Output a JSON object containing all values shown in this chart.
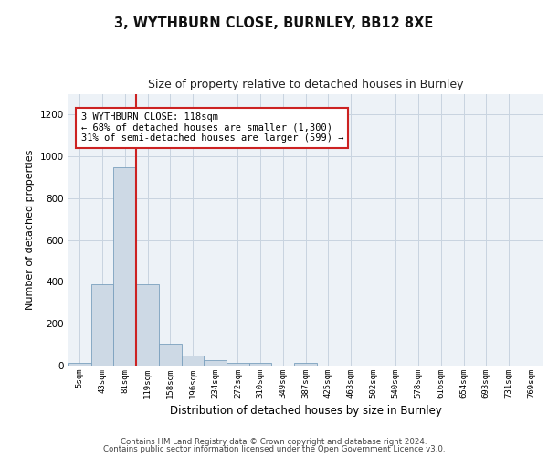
{
  "title1": "3, WYTHBURN CLOSE, BURNLEY, BB12 8XE",
  "title2": "Size of property relative to detached houses in Burnley",
  "xlabel": "Distribution of detached houses by size in Burnley",
  "ylabel": "Number of detached properties",
  "footer1": "Contains HM Land Registry data © Crown copyright and database right 2024.",
  "footer2": "Contains public sector information licensed under the Open Government Licence v3.0.",
  "categories": [
    "5sqm",
    "43sqm",
    "81sqm",
    "119sqm",
    "158sqm",
    "196sqm",
    "234sqm",
    "272sqm",
    "310sqm",
    "349sqm",
    "387sqm",
    "425sqm",
    "463sqm",
    "502sqm",
    "540sqm",
    "578sqm",
    "616sqm",
    "654sqm",
    "693sqm",
    "731sqm",
    "769sqm"
  ],
  "values": [
    15,
    390,
    950,
    390,
    105,
    50,
    25,
    15,
    12,
    0,
    12,
    0,
    0,
    0,
    0,
    0,
    0,
    0,
    0,
    0,
    0
  ],
  "bar_color": "#cdd9e5",
  "bar_edge_color": "#7aa0be",
  "red_line_x": 2.5,
  "annotation_text_lines": [
    "3 WYTHBURN CLOSE: 118sqm",
    "← 68% of detached houses are smaller (1,300)",
    "31% of semi-detached houses are larger (599) →"
  ],
  "red_line_color": "#cc2222",
  "ylim": [
    0,
    1300
  ],
  "yticks": [
    0,
    200,
    400,
    600,
    800,
    1000,
    1200
  ],
  "grid_color": "#c8d4e0",
  "background_color": "#edf2f7",
  "annotation_fontsize": 7.5,
  "title1_fontsize": 10.5,
  "title2_fontsize": 9
}
